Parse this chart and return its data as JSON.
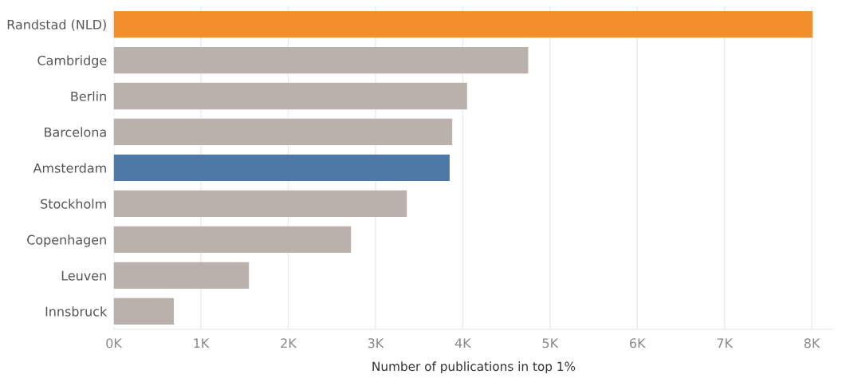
{
  "chart_data": {
    "type": "bar",
    "orientation": "horizontal",
    "xlabel": "Number of publications in top 1%",
    "categories": [
      "Randstad (NLD)",
      "Cambridge",
      "Berlin",
      "Barcelona",
      "Amsterdam",
      "Stockholm",
      "Copenhagen",
      "Leuven",
      "Innsbruck"
    ],
    "values": [
      8010,
      4750,
      4050,
      3880,
      3850,
      3360,
      2720,
      1550,
      690
    ],
    "colors": [
      "#f28e2b",
      "#bab0ac",
      "#bab0ac",
      "#bab0ac",
      "#4e79a7",
      "#bab0ac",
      "#bab0ac",
      "#bab0ac",
      "#bab0ac"
    ],
    "xlim": [
      0,
      8250
    ],
    "xticks": [
      {
        "value": 0,
        "label": "0K"
      },
      {
        "value": 1000,
        "label": "1K"
      },
      {
        "value": 2000,
        "label": "2K"
      },
      {
        "value": 3000,
        "label": "3K"
      },
      {
        "value": 4000,
        "label": "4K"
      },
      {
        "value": 5000,
        "label": "5K"
      },
      {
        "value": 6000,
        "label": "6K"
      },
      {
        "value": 7000,
        "label": "7K"
      },
      {
        "value": 8000,
        "label": "8K"
      }
    ],
    "grid": "x"
  }
}
